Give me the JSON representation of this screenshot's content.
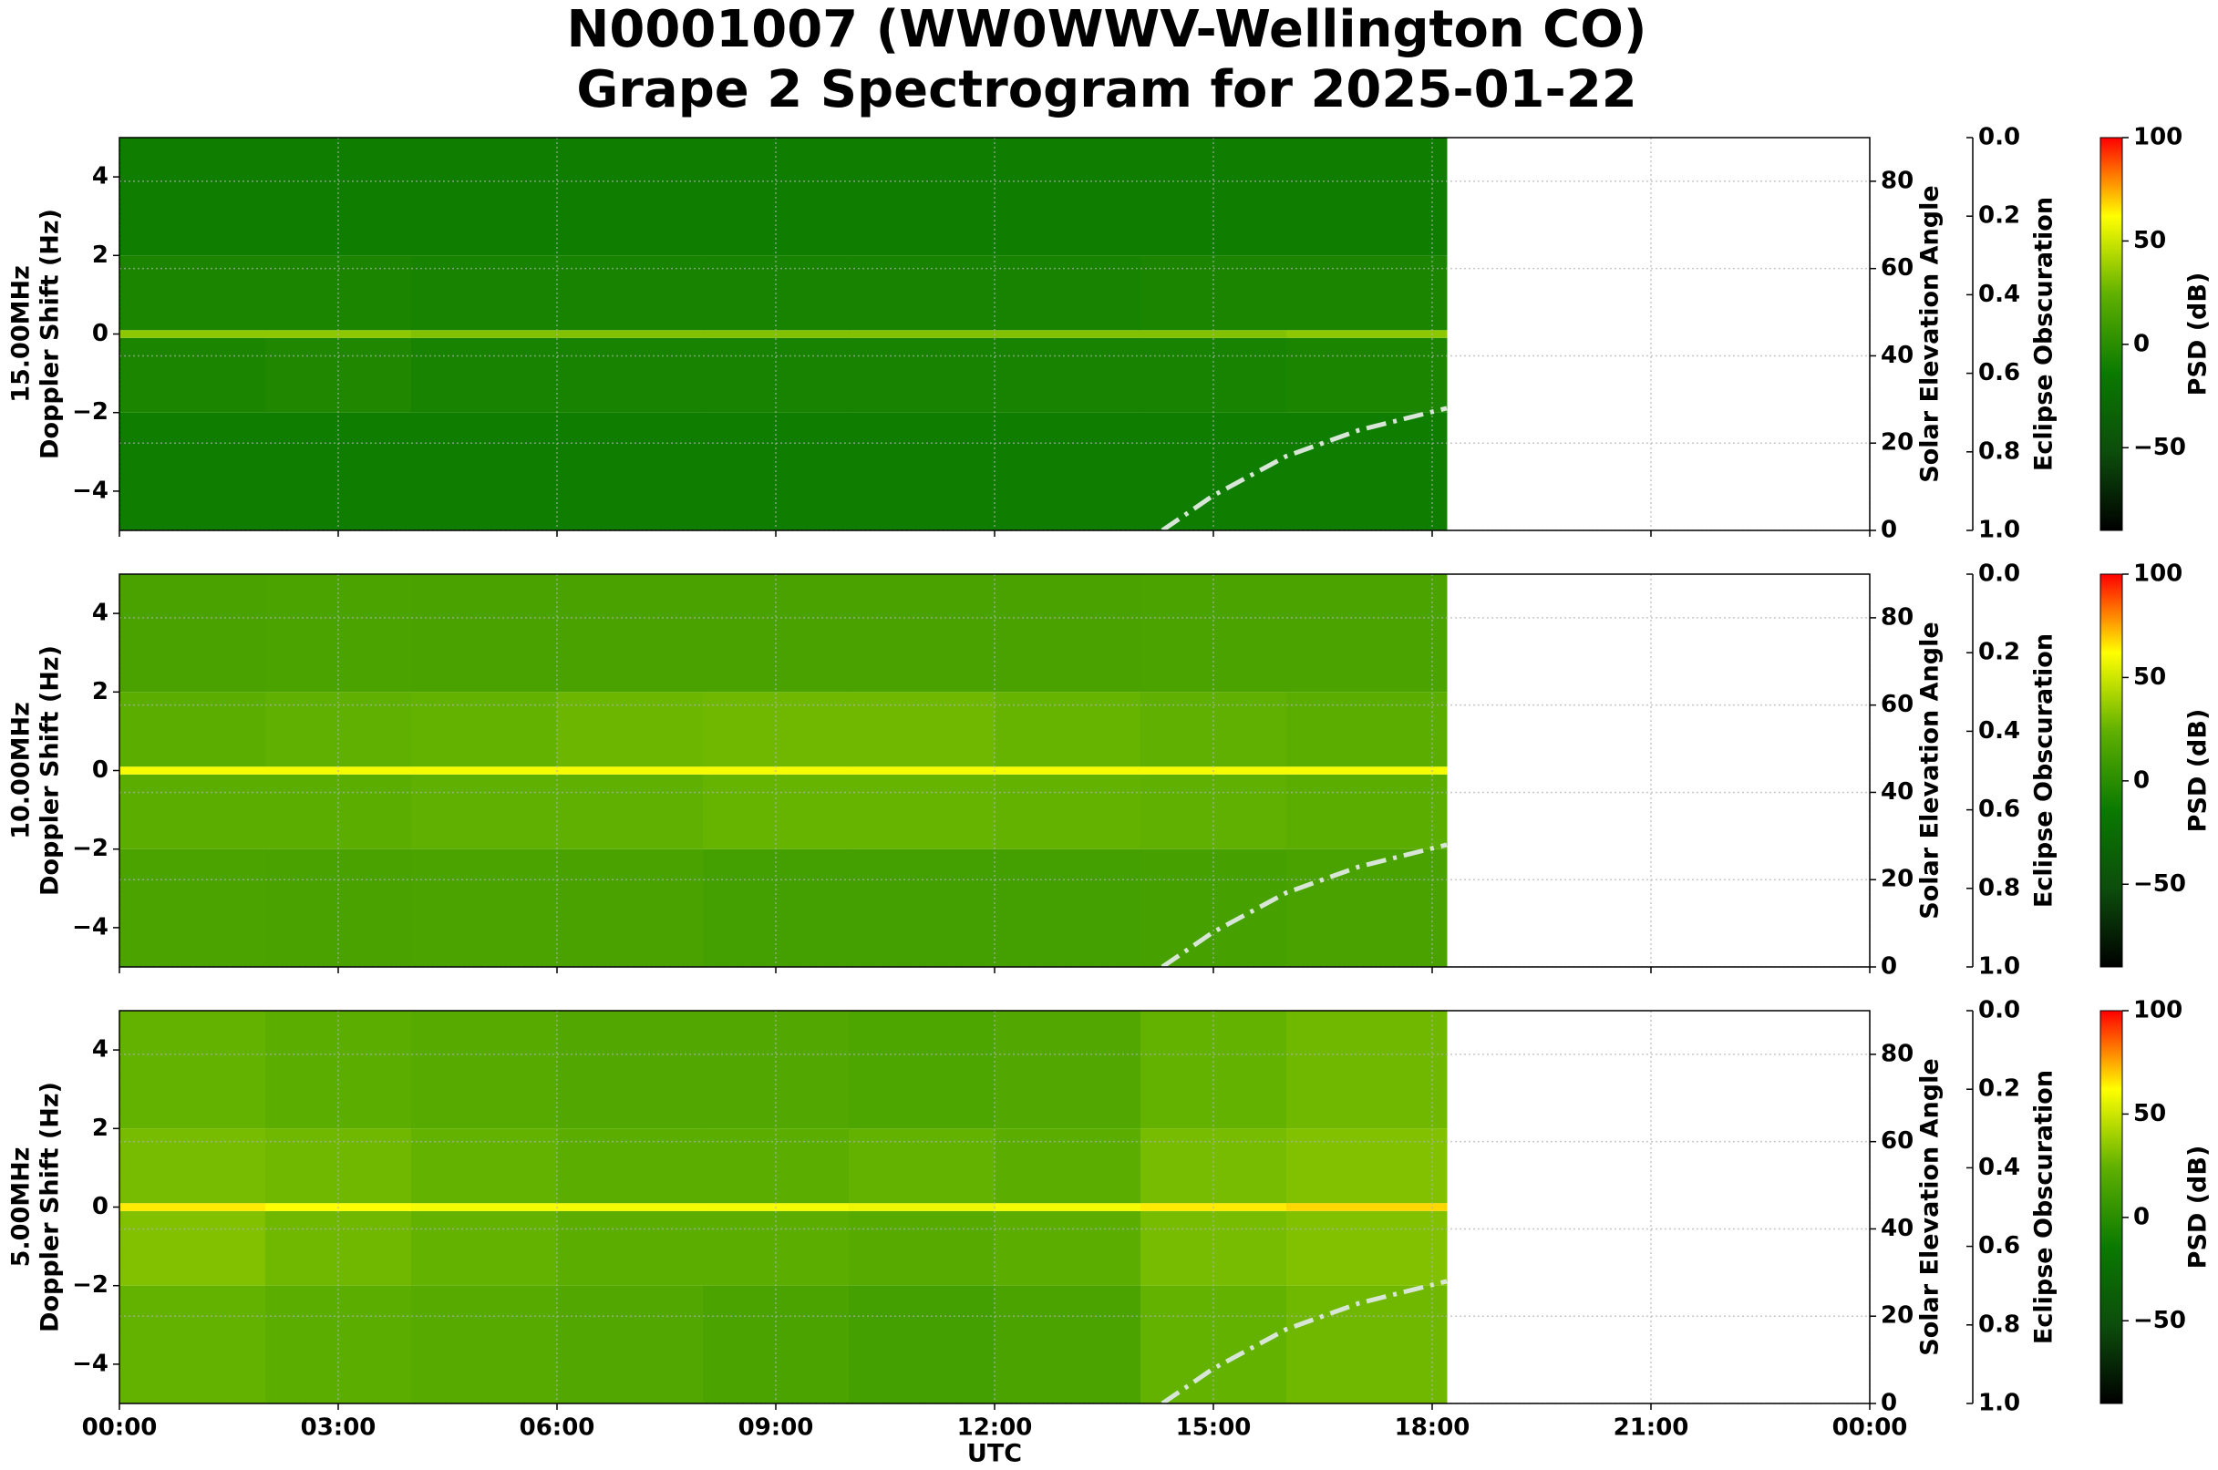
{
  "title_lines": [
    "N0001007 (WW0WWV-Wellington CO)",
    "Grape 2 Spectrogram for 2025-01-22"
  ],
  "chart_data": [
    {
      "type": "spectrogram",
      "freq_label": "15.00MHz",
      "ylabel": "Doppler Shift (Hz)",
      "y2label": "Solar Elevation Angle",
      "y3label": "Eclipse Obscuration",
      "clabel": "PSD (dB)",
      "xlim": [
        0,
        24
      ],
      "xticks": [
        0,
        3,
        6,
        9,
        12,
        15,
        18,
        21,
        24
      ],
      "ylim": [
        -5,
        5
      ],
      "yticks": [
        {
          "value": -4,
          "label": "−4"
        },
        {
          "value": -2,
          "label": "−2"
        },
        0,
        2,
        4
      ],
      "y2lim": [
        0,
        90
      ],
      "y2ticks": [
        0,
        20,
        40,
        60,
        80
      ],
      "y3lim": [
        1,
        0
      ],
      "y3ticks": [
        {
          "value": 0,
          "label": "0.0"
        },
        0.2,
        0.4,
        0.6,
        0.8,
        {
          "value": 1,
          "label": "1.0"
        }
      ],
      "clim": [
        -90,
        100
      ],
      "cticks": [
        {
          "value": -50,
          "label": "−50"
        },
        0,
        50,
        100
      ],
      "colorscale": [
        "#000000",
        "#0c4d0c",
        "#0a7a00",
        "#5fb000",
        "#ffff00",
        "#ff0000"
      ],
      "grid": true,
      "psd": {
        "x_edges": [
          0,
          2,
          4,
          6,
          8,
          10,
          12,
          14,
          16,
          18.2
        ],
        "y_edges": [
          -5,
          -2,
          -0.1,
          0.1,
          2,
          5
        ],
        "values": [
          [
            -12,
            -12,
            -12,
            -12,
            -12,
            -12,
            -12,
            -12,
            -12
          ],
          [
            -6,
            -4,
            -8,
            -8,
            -8,
            -8,
            -8,
            -8,
            -6
          ],
          [
            35,
            35,
            32,
            32,
            32,
            32,
            32,
            32,
            35
          ],
          [
            -6,
            -6,
            -8,
            -8,
            -8,
            -8,
            -8,
            -6,
            -6
          ],
          [
            -12,
            -12,
            -12,
            -12,
            -12,
            -12,
            -12,
            -12,
            -12
          ]
        ]
      },
      "series": [
        {
          "name": "Solar Elevation",
          "color": "#d8e6d8",
          "axis": "y2",
          "x": [
            14.3,
            15,
            16,
            17,
            18.2
          ],
          "values": [
            0,
            8,
            17,
            23,
            28
          ]
        }
      ]
    },
    {
      "type": "spectrogram",
      "freq_label": "10.00MHz",
      "ylabel": "Doppler Shift (Hz)",
      "y2label": "Solar Elevation Angle",
      "y3label": "Eclipse Obscuration",
      "clabel": "PSD (dB)",
      "xlim": [
        0,
        24
      ],
      "xticks": [
        0,
        3,
        6,
        9,
        12,
        15,
        18,
        21,
        24
      ],
      "ylim": [
        -5,
        5
      ],
      "yticks": [
        {
          "value": -4,
          "label": "−4"
        },
        {
          "value": -2,
          "label": "−2"
        },
        0,
        2,
        4
      ],
      "y2lim": [
        0,
        90
      ],
      "y2ticks": [
        0,
        20,
        40,
        60,
        80
      ],
      "y3lim": [
        1,
        0
      ],
      "y3ticks": [
        {
          "value": 0,
          "label": "0.0"
        },
        0.2,
        0.4,
        0.6,
        0.8,
        {
          "value": 1,
          "label": "1.0"
        }
      ],
      "clim": [
        -90,
        100
      ],
      "cticks": [
        {
          "value": -50,
          "label": "−50"
        },
        0,
        50,
        100
      ],
      "colorscale": [
        "#000000",
        "#0c4d0c",
        "#0a7a00",
        "#5fb000",
        "#ffff00",
        "#ff0000"
      ],
      "grid": true,
      "psd": {
        "x_edges": [
          0,
          2,
          4,
          6,
          8,
          10,
          12,
          14,
          16,
          18.2
        ],
        "y_edges": [
          -5,
          -2,
          -0.1,
          0.1,
          2,
          5
        ],
        "values": [
          [
            15,
            14,
            15,
            14,
            12,
            12,
            12,
            13,
            14
          ],
          [
            22,
            22,
            24,
            24,
            26,
            26,
            25,
            24,
            22
          ],
          [
            60,
            60,
            60,
            60,
            60,
            60,
            60,
            60,
            60
          ],
          [
            22,
            24,
            25,
            27,
            28,
            28,
            26,
            24,
            22
          ],
          [
            14,
            15,
            14,
            14,
            14,
            14,
            14,
            15,
            15
          ]
        ]
      },
      "series": [
        {
          "name": "Solar Elevation",
          "color": "#d8e6d8",
          "axis": "y2",
          "x": [
            14.3,
            15,
            16,
            17,
            18.2
          ],
          "values": [
            0,
            8,
            17,
            23,
            28
          ]
        }
      ]
    },
    {
      "type": "spectrogram",
      "freq_label": "5.00MHz",
      "ylabel": "Doppler Shift (Hz)",
      "y2label": "Solar Elevation Angle",
      "y3label": "Eclipse Obscuration",
      "clabel": "PSD (dB)",
      "xlabel": "UTC",
      "xlim": [
        0,
        24
      ],
      "xticks": [
        {
          "value": 0,
          "label": "00:00"
        },
        {
          "value": 3,
          "label": "03:00"
        },
        {
          "value": 6,
          "label": "06:00"
        },
        {
          "value": 9,
          "label": "09:00"
        },
        {
          "value": 12,
          "label": "12:00"
        },
        {
          "value": 15,
          "label": "15:00"
        },
        {
          "value": 18,
          "label": "18:00"
        },
        {
          "value": 21,
          "label": "21:00"
        },
        {
          "value": 24,
          "label": "00:00"
        }
      ],
      "ylim": [
        -5,
        5
      ],
      "yticks": [
        {
          "value": -4,
          "label": "−4"
        },
        {
          "value": -2,
          "label": "−2"
        },
        0,
        2,
        4
      ],
      "y2lim": [
        0,
        90
      ],
      "y2ticks": [
        0,
        20,
        40,
        60,
        80
      ],
      "y3lim": [
        1,
        0
      ],
      "y3ticks": [
        {
          "value": 0,
          "label": "0.0"
        },
        0.2,
        0.4,
        0.6,
        0.8,
        {
          "value": 1,
          "label": "1.0"
        }
      ],
      "clim": [
        -90,
        100
      ],
      "cticks": [
        {
          "value": -50,
          "label": "−50"
        },
        0,
        50,
        100
      ],
      "colorscale": [
        "#000000",
        "#0c4d0c",
        "#0a7a00",
        "#5fb000",
        "#ffff00",
        "#ff0000"
      ],
      "grid": true,
      "psd": {
        "x_edges": [
          0,
          2,
          4,
          6,
          8,
          10,
          12,
          14,
          16,
          18.2
        ],
        "y_edges": [
          -5,
          -2,
          -0.1,
          0.1,
          2,
          5
        ],
        "values": [
          [
            25,
            22,
            20,
            18,
            15,
            12,
            15,
            25,
            28
          ],
          [
            32,
            28,
            25,
            22,
            22,
            20,
            22,
            30,
            32
          ],
          [
            65,
            62,
            60,
            60,
            60,
            58,
            60,
            65,
            68
          ],
          [
            30,
            28,
            25,
            22,
            22,
            25,
            22,
            30,
            32
          ],
          [
            25,
            22,
            20,
            18,
            18,
            16,
            18,
            25,
            28
          ]
        ]
      },
      "series": [
        {
          "name": "Solar Elevation",
          "color": "#d8e6d8",
          "axis": "y2",
          "x": [
            14.3,
            15,
            16,
            17,
            18.2
          ],
          "values": [
            0,
            8,
            17,
            23,
            28
          ]
        }
      ]
    }
  ]
}
